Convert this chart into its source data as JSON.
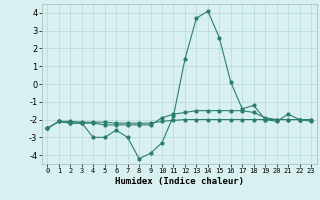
{
  "xlabel": "Humidex (Indice chaleur)",
  "x": [
    0,
    1,
    2,
    3,
    4,
    5,
    6,
    7,
    8,
    9,
    10,
    11,
    12,
    13,
    14,
    15,
    16,
    17,
    18,
    19,
    20,
    21,
    22,
    23
  ],
  "line1": [
    -2.5,
    -2.1,
    -2.2,
    -2.2,
    -3.0,
    -3.0,
    -2.6,
    -3.0,
    -4.2,
    -3.9,
    -3.3,
    -1.8,
    1.4,
    3.7,
    4.1,
    2.6,
    0.1,
    -1.4,
    -1.2,
    -2.0,
    -2.1,
    -1.7,
    -2.0,
    -2.1
  ],
  "line2": [
    -2.5,
    -2.1,
    -2.2,
    -2.2,
    -2.2,
    -2.3,
    -2.3,
    -2.3,
    -2.3,
    -2.3,
    -1.9,
    -1.7,
    -1.6,
    -1.5,
    -1.5,
    -1.5,
    -1.5,
    -1.5,
    -1.6,
    -1.9,
    -2.0,
    -2.0,
    -2.0,
    -2.0
  ],
  "line3": [
    -2.5,
    -2.1,
    -2.1,
    -2.15,
    -2.15,
    -2.15,
    -2.2,
    -2.2,
    -2.2,
    -2.2,
    -2.1,
    -2.05,
    -2.0,
    -2.0,
    -2.0,
    -2.0,
    -2.0,
    -2.0,
    -2.0,
    -2.0,
    -2.0,
    -2.0,
    -2.0,
    -2.0
  ],
  "line_color": "#2d7d6e",
  "bg_color": "#d8f0f0",
  "grid_color": "#b8d8d8",
  "ylim": [
    -4.5,
    4.5
  ],
  "yticks": [
    -4,
    -3,
    -2,
    -1,
    0,
    1,
    2,
    3,
    4
  ],
  "xticks": [
    0,
    1,
    2,
    3,
    4,
    5,
    6,
    7,
    8,
    9,
    10,
    11,
    12,
    13,
    14,
    15,
    16,
    17,
    18,
    19,
    20,
    21,
    22,
    23
  ]
}
